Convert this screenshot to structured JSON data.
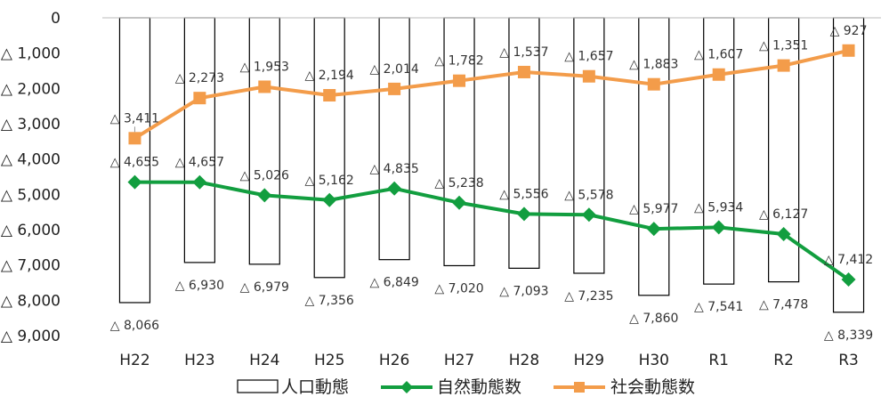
{
  "chart_data": {
    "type": "bar",
    "categories": [
      "H22",
      "H23",
      "H24",
      "H25",
      "H26",
      "H27",
      "H28",
      "H29",
      "H30",
      "R1",
      "R2",
      "R3"
    ],
    "y_tick_labels": [
      "0",
      "△ 1,000",
      "△ 2,000",
      "△ 3,000",
      "△ 4,000",
      "△ 5,000",
      "△ 6,000",
      "△ 7,000",
      "△ 8,000",
      "△ 9,000"
    ],
    "ylim": [
      0,
      -9000
    ],
    "grid": false,
    "legend_position": "bottom",
    "series": [
      {
        "name": "人口動態",
        "type": "bar",
        "color": "#000000",
        "fill": "#ffffff",
        "values": [
          -8066,
          -6930,
          -6979,
          -7356,
          -6849,
          -7020,
          -7093,
          -7235,
          -7860,
          -7541,
          -7478,
          -8339
        ],
        "labels": [
          "△ 8,066",
          "△ 6,930",
          "△ 6,979",
          "△ 7,356",
          "△ 6,849",
          "△ 7,020",
          "△ 7,093",
          "△ 7,235",
          "△ 7,860",
          "△ 7,541",
          "△ 7,478",
          "△ 8,339"
        ]
      },
      {
        "name": "自然動態数",
        "type": "line",
        "color": "#129E3F",
        "marker": "diamond",
        "values": [
          -4655,
          -4657,
          -5026,
          -5162,
          -4835,
          -5238,
          -5556,
          -5578,
          -5977,
          -5934,
          -6127,
          -7412
        ],
        "labels": [
          "△ 4,655",
          "△ 4,657",
          "△ 5,026",
          "△ 5,162",
          "△ 4,835",
          "△ 5,238",
          "△ 5,556",
          "△ 5,578",
          "△ 5,977",
          "△ 5,934",
          "△ 6,127",
          "△ 7,412"
        ]
      },
      {
        "name": "社会動態数",
        "type": "line",
        "color": "#F39C4A",
        "marker": "square",
        "values": [
          -3411,
          -2273,
          -1953,
          -2194,
          -2014,
          -1782,
          -1537,
          -1657,
          -1883,
          -1607,
          -1351,
          -927
        ],
        "labels": [
          "△ 3,411",
          "△ 2,273",
          "△ 1,953",
          "△ 2,194",
          "△ 2,014",
          "△ 1,782",
          "△ 1,537",
          "△ 1,657",
          "△ 1,883",
          "△ 1,607",
          "△ 1,351",
          "△ 927"
        ]
      }
    ]
  }
}
